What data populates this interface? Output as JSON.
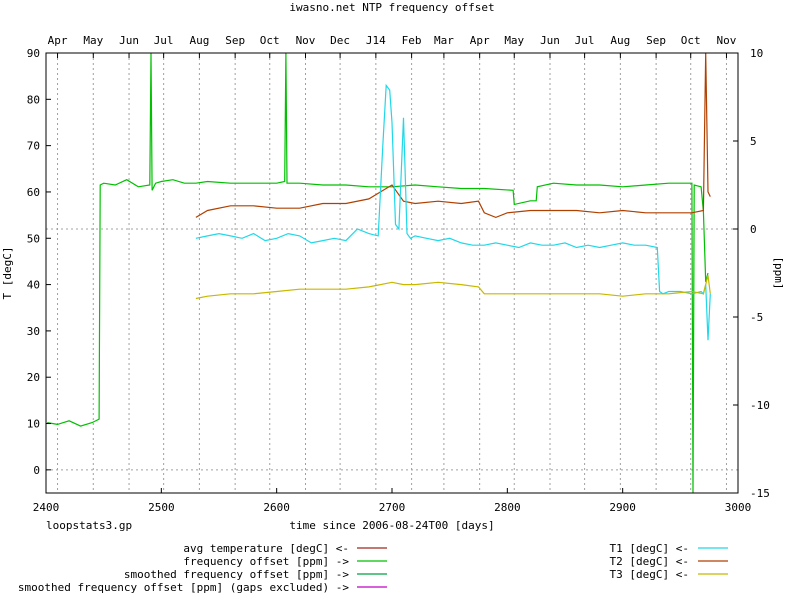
{
  "chart_data": {
    "type": "line",
    "title": "iwasno.net NTP frequency offset",
    "xlabel": "time since 2006-08-24T00 [days]",
    "ylabel": "T [degC]",
    "y2label": "[ppm]",
    "footer": "loopstats3.gp",
    "xlim": [
      2400,
      3000
    ],
    "ylim": [
      -5,
      90
    ],
    "y2lim": [
      -15,
      10
    ],
    "x_ticks": [
      2400,
      2500,
      2600,
      2700,
      2800,
      2900,
      3000
    ],
    "y_ticks": [
      0,
      10,
      20,
      30,
      40,
      50,
      60,
      70,
      80,
      90
    ],
    "y2_ticks": [
      -15,
      -10,
      -5,
      0,
      5,
      10
    ],
    "month_ticks": [
      {
        "label": "Apr",
        "day": 2410
      },
      {
        "label": "May",
        "day": 2441
      },
      {
        "label": "Jun",
        "day": 2472
      },
      {
        "label": "Jul",
        "day": 2502
      },
      {
        "label": "Aug",
        "day": 2533
      },
      {
        "label": "Sep",
        "day": 2564
      },
      {
        "label": "Oct",
        "day": 2594
      },
      {
        "label": "Nov",
        "day": 2625
      },
      {
        "label": "Dec",
        "day": 2655
      },
      {
        "label": "J14",
        "day": 2686
      },
      {
        "label": "Feb",
        "day": 2717
      },
      {
        "label": "Mar",
        "day": 2745
      },
      {
        "label": "Apr",
        "day": 2776
      },
      {
        "label": "May",
        "day": 2806
      },
      {
        "label": "Jun",
        "day": 2837
      },
      {
        "label": "Jul",
        "day": 2867
      },
      {
        "label": "Aug",
        "day": 2898
      },
      {
        "label": "Sep",
        "day": 2929
      },
      {
        "label": "Oct",
        "day": 2959
      },
      {
        "label": "Nov",
        "day": 2990
      }
    ],
    "grid": true,
    "legend_left": [
      {
        "label": "avg temperature [degC] <-",
        "color": "#a0281e"
      },
      {
        "label": "frequency offset [ppm] ->",
        "color": "#00c000"
      },
      {
        "label": "smoothed frequency offset [ppm] ->",
        "color": "#00a040"
      },
      {
        "label": "smoothed frequency offset [ppm] (gaps excluded) ->",
        "color": "#c000c0"
      }
    ],
    "legend_right": [
      {
        "label": "T1 [degC] <-",
        "color": "#20d8e8"
      },
      {
        "label": "T2 [degC] <-",
        "color": "#b04000"
      },
      {
        "label": "T3 [degC] <-",
        "color": "#c8b800"
      }
    ],
    "series": [
      {
        "color": "#00c000",
        "axis": "y2",
        "x": [
          2401,
          2410,
          2420,
          2430,
          2440,
          2446,
          2447,
          2450,
          2460,
          2470,
          2480,
          2490,
          2491,
          2492,
          2495,
          2500,
          2510,
          2520,
          2530,
          2540,
          2560,
          2580,
          2600,
          2607,
          2608,
          2609,
          2620,
          2640,
          2660,
          2680,
          2700,
          2720,
          2740,
          2760,
          2780,
          2805,
          2806,
          2820,
          2825,
          2826,
          2840,
          2860,
          2880,
          2900,
          2920,
          2940,
          2960,
          2961,
          2962,
          2968,
          2970,
          2972,
          2974
        ],
        "y": [
          -11.0,
          -11.1,
          -10.9,
          -11.2,
          -11.0,
          -10.8,
          2.5,
          2.6,
          2.5,
          2.8,
          2.4,
          2.5,
          10.0,
          2.2,
          2.6,
          2.7,
          2.8,
          2.6,
          2.6,
          2.7,
          2.6,
          2.6,
          2.6,
          2.7,
          10.0,
          2.6,
          2.6,
          2.5,
          2.5,
          2.4,
          2.4,
          2.5,
          2.4,
          2.3,
          2.3,
          2.2,
          1.4,
          1.6,
          1.6,
          2.4,
          2.6,
          2.5,
          2.5,
          2.4,
          2.5,
          2.6,
          2.6,
          -15.0,
          2.5,
          2.4,
          1.0,
          -3.0,
          -2.5
        ]
      },
      {
        "color": "#b04000",
        "axis": "y1",
        "x": [
          2530,
          2540,
          2560,
          2580,
          2600,
          2620,
          2640,
          2660,
          2680,
          2690,
          2700,
          2710,
          2720,
          2740,
          2760,
          2775,
          2780,
          2790,
          2800,
          2820,
          2840,
          2860,
          2880,
          2900,
          2920,
          2940,
          2960,
          2970,
          2972,
          2974,
          2976
        ],
        "y": [
          54.5,
          56,
          57,
          57,
          56.5,
          56.5,
          57.5,
          57.5,
          58.5,
          60,
          61.5,
          58,
          57.5,
          58,
          57.5,
          58,
          55.5,
          54.5,
          55.5,
          56,
          56,
          56,
          55.5,
          56,
          55.5,
          55.5,
          55.5,
          56,
          90,
          60,
          59
        ]
      },
      {
        "color": "#20d8e8",
        "axis": "y1",
        "x": [
          2530,
          2540,
          2550,
          2560,
          2570,
          2580,
          2590,
          2600,
          2610,
          2620,
          2630,
          2640,
          2650,
          2660,
          2670,
          2680,
          2688,
          2692,
          2695,
          2698,
          2700,
          2703,
          2706,
          2710,
          2713,
          2716,
          2720,
          2730,
          2740,
          2750,
          2760,
          2770,
          2780,
          2790,
          2800,
          2810,
          2820,
          2830,
          2840,
          2850,
          2860,
          2870,
          2880,
          2890,
          2900,
          2910,
          2920,
          2930,
          2932,
          2935,
          2940,
          2950,
          2960,
          2968,
          2970,
          2972,
          2974,
          2976
        ],
        "y": [
          50,
          50.5,
          51,
          50.5,
          50,
          51,
          49.5,
          50,
          51,
          50.5,
          49,
          49.5,
          50,
          49.5,
          52,
          51,
          50.5,
          70,
          83,
          82,
          75,
          53,
          52,
          76,
          51,
          50,
          50.5,
          50,
          49.5,
          50,
          49,
          48.5,
          48.5,
          49,
          48.5,
          48,
          49,
          48.5,
          48.5,
          49,
          48,
          48.5,
          48,
          48.5,
          49,
          48.5,
          48.5,
          48,
          38.5,
          38,
          38.5,
          38.5,
          38,
          38.5,
          38,
          40,
          28,
          38
        ]
      },
      {
        "color": "#c8b800",
        "axis": "y1",
        "x": [
          2530,
          2540,
          2560,
          2580,
          2600,
          2620,
          2640,
          2660,
          2680,
          2690,
          2700,
          2710,
          2720,
          2740,
          2760,
          2775,
          2780,
          2800,
          2820,
          2840,
          2860,
          2880,
          2900,
          2920,
          2940,
          2960,
          2970,
          2974,
          2976
        ],
        "y": [
          37,
          37.5,
          38,
          38,
          38.5,
          39,
          39,
          39,
          39.5,
          40,
          40.5,
          40,
          40,
          40.5,
          40,
          39.5,
          38,
          38,
          38,
          38,
          38,
          38,
          37.5,
          38,
          38,
          38.5,
          38,
          42,
          38
        ]
      }
    ]
  }
}
